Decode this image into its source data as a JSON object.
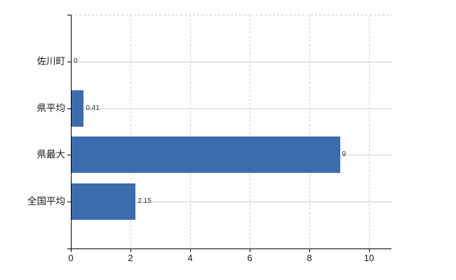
{
  "chart_data": {
    "type": "bar",
    "orientation": "horizontal",
    "title": "",
    "xlabel": "",
    "ylabel": "",
    "categories": [
      "佐川町",
      "県平均",
      "県最大",
      "全国平均"
    ],
    "values": [
      0,
      0.41,
      9,
      2.15
    ],
    "value_labels": [
      "0",
      "0.41",
      "9",
      "2.15"
    ],
    "x_tick_values": [
      0,
      2,
      4,
      6,
      8,
      10
    ],
    "x_tick_labels": [
      "0",
      "2",
      "4",
      "6",
      "8",
      "10"
    ],
    "xlim": [
      0,
      10.75
    ],
    "grid": "vertical dashed at even ticks, horizontal solid at row centers, dashed top border",
    "legend": "none",
    "colors": {
      "bar": "#3c6cad",
      "axis": "#000000",
      "grid_dashed": "#d5cdd5",
      "grid_solid": "#ccd3cb",
      "value_label": "#333333",
      "tick_label": "#1a1a1a",
      "background": "#ffffff"
    }
  }
}
